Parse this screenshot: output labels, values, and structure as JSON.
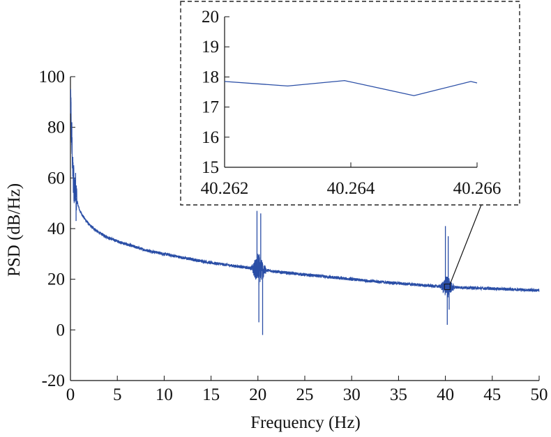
{
  "chart_data": [
    {
      "type": "line",
      "xlabel": "Frequency (Hz)",
      "ylabel": "PSD (dB/Hz)",
      "xlim": [
        0,
        50
      ],
      "ylim": [
        -20,
        100
      ],
      "x_ticks": [
        0,
        5,
        10,
        15,
        20,
        25,
        30,
        35,
        40,
        45,
        50
      ],
      "y_ticks": [
        -20,
        0,
        20,
        40,
        60,
        80,
        100
      ],
      "grid": false,
      "series_color": "#2a4ea6",
      "baseline": {
        "x": [
          0.05,
          0.1,
          0.2,
          0.3,
          0.5,
          0.8,
          1,
          1.5,
          2,
          3,
          4,
          5,
          6,
          8,
          10,
          12,
          15,
          18,
          20,
          22,
          25,
          28,
          30,
          32,
          35,
          38,
          40,
          42,
          45,
          48,
          50
        ],
        "y": [
          88,
          78,
          68,
          60,
          53,
          49.5,
          47,
          44,
          41.5,
          38.5,
          36.5,
          35,
          33.8,
          31.5,
          30,
          28.5,
          26.5,
          25,
          24,
          23,
          21.8,
          20.7,
          20,
          19.3,
          18.4,
          17.5,
          17,
          16.7,
          16.3,
          15.9,
          15.6
        ]
      },
      "peaks": [
        {
          "x": 0.05,
          "y": 90
        },
        {
          "x": 0.15,
          "y": 82
        },
        {
          "x": 0.35,
          "y": 65
        },
        {
          "x": 0.55,
          "y": 62
        },
        {
          "x": 0.6,
          "y": 43
        },
        {
          "x": 19.9,
          "y": 47
        },
        {
          "x": 20.3,
          "y": 46
        },
        {
          "x": 20.1,
          "y": 3
        },
        {
          "x": 20.5,
          "y": -2
        },
        {
          "x": 40.0,
          "y": 41
        },
        {
          "x": 40.3,
          "y": 37
        },
        {
          "x": 40.2,
          "y": 2
        },
        {
          "x": 40.4,
          "y": 8
        }
      ]
    },
    {
      "type": "line",
      "xlim": [
        40.262,
        40.266
      ],
      "ylim": [
        15,
        20
      ],
      "x_ticks": [
        "40.262",
        "40.264",
        "40.266"
      ],
      "y_ticks": [
        15,
        16,
        17,
        18,
        19,
        20
      ],
      "x": [
        40.262,
        40.263,
        40.2639,
        40.265,
        40.2659,
        40.266
      ],
      "y": [
        17.85,
        17.7,
        17.88,
        17.38,
        17.85,
        17.8
      ]
    }
  ]
}
